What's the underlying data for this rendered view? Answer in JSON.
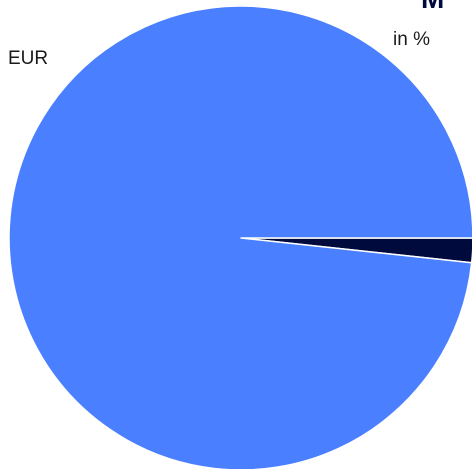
{
  "chart_data": {
    "type": "pie",
    "categories": [
      "",
      "EUR"
    ],
    "values": [
      1.7,
      98.3
    ],
    "colors": [
      "#000a3c",
      "#4a80ff"
    ],
    "title": "M",
    "subtitle": "in %",
    "clipped_left_title": "",
    "annotations": [
      "EUR"
    ],
    "legend": "none"
  }
}
